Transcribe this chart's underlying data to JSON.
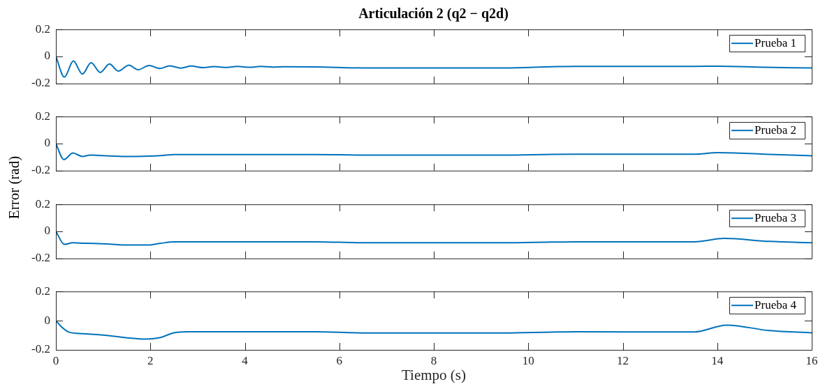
{
  "chart_data": [
    {
      "type": "line",
      "title": "Articulación 2 (q2 − q2d)",
      "legend": "top right",
      "tick_labels": "y",
      "xlim": [
        0,
        16
      ],
      "xticks": [
        0,
        2,
        4,
        6,
        8,
        10,
        12,
        14,
        16
      ],
      "ylim": [
        -0.2,
        0.2
      ],
      "yticks": [
        -0.2,
        0,
        0.2
      ],
      "series": [
        {
          "name": "Prueba 1",
          "color": "#0072bd",
          "x": [
            0,
            0.18,
            0.37,
            0.56,
            0.745,
            0.94,
            1.135,
            1.32,
            1.545,
            1.74,
            1.975,
            2.2,
            2.41,
            2.645,
            2.865,
            3.125,
            3.35,
            3.62,
            3.84,
            4.11,
            4.33,
            4.6,
            4.82,
            5.5,
            6.5,
            8,
            9.5,
            10.5,
            11,
            12,
            13.5,
            14,
            15,
            16
          ],
          "values": [
            0,
            -0.152,
            -0.034,
            -0.13,
            -0.047,
            -0.118,
            -0.056,
            -0.108,
            -0.064,
            -0.098,
            -0.067,
            -0.089,
            -0.069,
            -0.086,
            -0.071,
            -0.083,
            -0.075,
            -0.081,
            -0.074,
            -0.08,
            -0.074,
            -0.079,
            -0.076,
            -0.077,
            -0.085,
            -0.085,
            -0.085,
            -0.076,
            -0.073,
            -0.073,
            -0.073,
            -0.072,
            -0.08,
            -0.085
          ]
        }
      ]
    },
    {
      "type": "line",
      "ylabel": "Error (rad)",
      "legend": "top right",
      "tick_labels": "y",
      "xlim": [
        0,
        16
      ],
      "xticks": [
        0,
        2,
        4,
        6,
        8,
        10,
        12,
        14,
        16
      ],
      "ylim": [
        -0.2,
        0.2
      ],
      "yticks": [
        -0.2,
        0,
        0.2
      ],
      "series": [
        {
          "name": "Prueba 2",
          "color": "#0072bd",
          "x": [
            0,
            0.17,
            0.36,
            0.56,
            0.73,
            0.98,
            1.47,
            1.97,
            2.22,
            2.52,
            5.5,
            6.5,
            8,
            9.5,
            10.5,
            11,
            13.5,
            14,
            15,
            16
          ],
          "values": [
            0,
            -0.118,
            -0.07,
            -0.095,
            -0.085,
            -0.089,
            -0.096,
            -0.093,
            -0.089,
            -0.081,
            -0.081,
            -0.085,
            -0.085,
            -0.085,
            -0.08,
            -0.079,
            -0.079,
            -0.067,
            -0.078,
            -0.09
          ]
        }
      ]
    },
    {
      "type": "line",
      "legend": "top right",
      "tick_labels": "y",
      "xlim": [
        0,
        16
      ],
      "xticks": [
        0,
        2,
        4,
        6,
        8,
        10,
        12,
        14,
        16
      ],
      "ylim": [
        -0.2,
        0.2
      ],
      "yticks": [
        -0.2,
        0,
        0.2
      ],
      "series": [
        {
          "name": "Prueba 3",
          "color": "#0072bd",
          "x": [
            0,
            0.18,
            0.36,
            0.58,
            1.07,
            1.56,
            1.96,
            2.2,
            2.5,
            5.5,
            6.5,
            8,
            9.5,
            10.5,
            11,
            13.52,
            14.15,
            15.1,
            16
          ],
          "values": [
            0,
            -0.096,
            -0.084,
            -0.087,
            -0.093,
            -0.101,
            -0.1,
            -0.089,
            -0.077,
            -0.077,
            -0.084,
            -0.084,
            -0.084,
            -0.079,
            -0.077,
            -0.077,
            -0.052,
            -0.074,
            -0.084
          ]
        }
      ]
    },
    {
      "type": "line",
      "xlabel": "Tiempo (s)",
      "legend": "top right",
      "xlim": [
        0,
        16
      ],
      "xticks": [
        0,
        2,
        4,
        6,
        8,
        10,
        12,
        14,
        16
      ],
      "ylim": [
        -0.2,
        0.2
      ],
      "yticks": [
        -0.2,
        0,
        0.2
      ],
      "series": [
        {
          "name": "Prueba 4",
          "color": "#0072bd",
          "x": [
            0,
            0.14,
            0.28,
            0.58,
            1.07,
            1.56,
            1.9,
            2.2,
            2.5,
            2.8,
            5.5,
            6.5,
            8,
            9.5,
            10.5,
            11,
            13.52,
            14.2,
            15.1,
            16
          ],
          "values": [
            0,
            -0.049,
            -0.079,
            -0.089,
            -0.101,
            -0.119,
            -0.126,
            -0.116,
            -0.083,
            -0.076,
            -0.076,
            -0.084,
            -0.084,
            -0.084,
            -0.078,
            -0.076,
            -0.077,
            -0.03,
            -0.068,
            -0.083
          ]
        }
      ]
    }
  ]
}
